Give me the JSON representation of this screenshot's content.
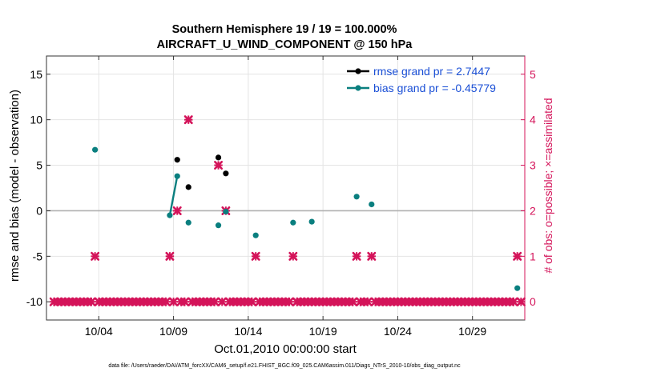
{
  "chart_data": {
    "type": "scatter",
    "title_line1": "Southern Hemisphere 19 / 19 = 100.000%",
    "title_line2": "AIRCRAFT_U_WIND_COMPONENT @ 150 hPa",
    "xlabel": "Oct.01,2010 00:00:00 start",
    "ylabel": "rmse and bias (model - observation)",
    "y2label": "# of obs: o=possible; ×=assimilated",
    "footer": "data file: /Users/raeder/DAI/ATM_forcXX/CAM6_setup/f.e21.FHIST_BGC.f09_025.CAM6assim.011/Diags_NTrS_2010-10/obs_diag_output.nc",
    "xlim": [
      0.5,
      32.5
    ],
    "ylim": [
      -12,
      17
    ],
    "y2lim": [
      -0.4,
      5.4
    ],
    "x_ticks": [
      4,
      9,
      14,
      19,
      24,
      29
    ],
    "x_tick_labels": [
      "10/04",
      "10/09",
      "10/14",
      "10/19",
      "10/24",
      "10/29"
    ],
    "y_ticks": [
      -10,
      -5,
      0,
      5,
      10,
      15
    ],
    "y_tick_labels": [
      "-10",
      "-5",
      "0",
      "5",
      "10",
      "15"
    ],
    "y2_ticks": [
      0,
      1,
      2,
      3,
      4,
      5
    ],
    "y2_tick_labels": [
      "0",
      "1",
      "2",
      "3",
      "4",
      "5"
    ],
    "colors": {
      "rmse": "#000000",
      "bias": "#0a7f7f",
      "obs": "#d4145a",
      "zero_line": "#b0b0b0",
      "grid": "#e4e4e4",
      "y2_axis": "#d4145a",
      "legend_text": "#1a4fd6"
    },
    "legend": [
      {
        "name": "rmse grand pr = 2.7447",
        "series": "rmse"
      },
      {
        "name": "bias grand pr = -0.45779",
        "series": "bias"
      }
    ],
    "rmse": {
      "points": [
        [
          9.25,
          5.6
        ],
        [
          10.0,
          2.6
        ],
        [
          12.0,
          5.85
        ],
        [
          12.5,
          4.1
        ]
      ],
      "line_segments": []
    },
    "bias": {
      "points": [
        [
          3.75,
          6.7
        ],
        [
          8.75,
          -0.5
        ],
        [
          9.25,
          3.8
        ],
        [
          10.0,
          -1.3
        ],
        [
          12.0,
          -1.6
        ],
        [
          12.5,
          -0.1
        ],
        [
          14.5,
          -2.7
        ],
        [
          17.0,
          -1.3
        ],
        [
          18.25,
          -1.2
        ],
        [
          21.25,
          1.55
        ],
        [
          22.25,
          0.7
        ],
        [
          32.0,
          -8.5
        ]
      ],
      "line_segments": [
        [
          [
            8.75,
            -0.5
          ],
          [
            9.25,
            3.8
          ]
        ]
      ]
    },
    "obs_nonzero": [
      [
        3.75,
        1
      ],
      [
        8.75,
        1
      ],
      [
        9.25,
        2
      ],
      [
        10.0,
        4
      ],
      [
        12.0,
        3
      ],
      [
        12.5,
        2
      ],
      [
        14.5,
        1
      ],
      [
        17.0,
        1
      ],
      [
        21.25,
        1
      ],
      [
        22.25,
        1
      ],
      [
        32.0,
        1
      ]
    ]
  }
}
